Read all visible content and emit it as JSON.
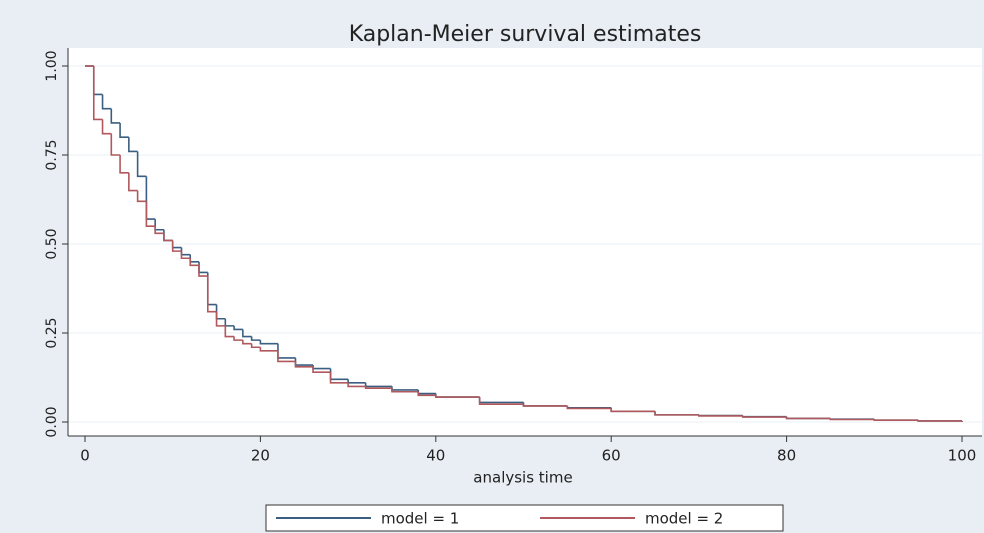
{
  "chart_data": {
    "type": "step",
    "title": "Kaplan-Meier survival estimates",
    "x_label": "analysis time",
    "x": [
      0,
      1,
      2,
      3,
      4,
      5,
      6,
      7,
      8,
      9,
      10,
      11,
      12,
      13,
      14,
      15,
      16,
      17,
      18,
      19,
      20,
      22,
      24,
      26,
      28,
      30,
      32,
      35,
      38,
      40,
      45,
      50,
      55,
      60,
      65,
      70,
      75,
      80,
      85,
      90,
      95,
      100
    ],
    "series": [
      {
        "name": "model = 1",
        "color": "#3b5f80",
        "values": [
          1.0,
          0.92,
          0.88,
          0.84,
          0.8,
          0.76,
          0.69,
          0.57,
          0.54,
          0.51,
          0.49,
          0.47,
          0.45,
          0.42,
          0.33,
          0.29,
          0.27,
          0.26,
          0.24,
          0.23,
          0.22,
          0.18,
          0.16,
          0.15,
          0.12,
          0.11,
          0.1,
          0.09,
          0.08,
          0.07,
          0.055,
          0.045,
          0.04,
          0.03,
          0.02,
          0.018,
          0.015,
          0.01,
          0.008,
          0.005,
          0.003,
          0.0
        ]
      },
      {
        "name": "model = 2",
        "color": "#b0585c",
        "values": [
          1.0,
          0.85,
          0.81,
          0.75,
          0.7,
          0.65,
          0.62,
          0.55,
          0.53,
          0.51,
          0.48,
          0.46,
          0.44,
          0.41,
          0.31,
          0.27,
          0.24,
          0.23,
          0.22,
          0.21,
          0.2,
          0.17,
          0.155,
          0.14,
          0.11,
          0.1,
          0.095,
          0.085,
          0.075,
          0.07,
          0.05,
          0.045,
          0.038,
          0.03,
          0.02,
          0.017,
          0.014,
          0.01,
          0.007,
          0.005,
          0.003,
          0.0
        ]
      }
    ],
    "xlim": [
      0,
      100
    ],
    "xticks": [
      0,
      20,
      40,
      60,
      80,
      100
    ],
    "ylim": [
      0,
      1
    ],
    "yticks": [
      {
        "value": 0,
        "label": "0.00"
      },
      {
        "value": 0.25,
        "label": "0.25"
      },
      {
        "value": 0.5,
        "label": "0.50"
      },
      {
        "value": 0.75,
        "label": "0.75"
      },
      {
        "value": 1,
        "label": "1.00"
      }
    ],
    "grid": true
  }
}
